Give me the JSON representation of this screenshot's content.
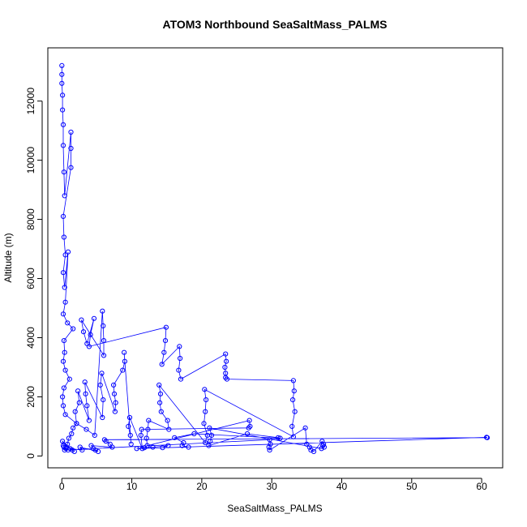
{
  "chart_data": {
    "type": "scatter",
    "title": "ATOM3 Northbound SeaSaltMass_PALMS",
    "xlabel": "SeaSaltMass_PALMS",
    "ylabel": "Altitude (m)",
    "xlim": [
      -2,
      63
    ],
    "ylim": [
      -400,
      13800
    ],
    "xticks": [
      0,
      10,
      20,
      30,
      40,
      50,
      60
    ],
    "yticks": [
      0,
      2000,
      4000,
      6000,
      8000,
      10000,
      12000
    ],
    "marker": "open-circle",
    "connect_points": true,
    "grid": false,
    "legend": "none",
    "series_color": "#0000ff",
    "series": [
      {
        "x": [
          0.0,
          0.0,
          0.0,
          0.1,
          0.1,
          0.2,
          0.2,
          0.3,
          0.4,
          1.3,
          1.3,
          1.3,
          0.2,
          0.3,
          0.5,
          0.2,
          0.4,
          0.9,
          0.5,
          0.2,
          0.8,
          1.6,
          0.3,
          0.4,
          0.2,
          0.5,
          1.1,
          0.3,
          0.1,
          0.2,
          0.5,
          2.1,
          3.5,
          4.7,
          5.8,
          5.9,
          6.0,
          6.0,
          2.8,
          3.1,
          3.6,
          4.6,
          4.1,
          3.9,
          14.9,
          14.8,
          14.6,
          14.3,
          16.8,
          16.9,
          16.7,
          17.0,
          23.4,
          23.5,
          23.3,
          23.4,
          23.4,
          23.6,
          33.1,
          33.2,
          33.0,
          33.3,
          32.9,
          33.1,
          20.4,
          20.6,
          20.5,
          20.3,
          20.8,
          20.5,
          13.9,
          14.1,
          14.0,
          14.2,
          15.1,
          15.3,
          12.4,
          12.3,
          12.1,
          12.2,
          26.8,
          26.9,
          26.7,
          11.4,
          11.3,
          11.5,
          9.7,
          9.5,
          9.8,
          9.9,
          8.9,
          9.0,
          8.7,
          7.4,
          7.5,
          7.7,
          7.6,
          5.7,
          5.5,
          5.9,
          5.8,
          3.3,
          3.4,
          3.6,
          3.9,
          2.3,
          2.5,
          1.9,
          2.1,
          1.6,
          1.4,
          1.0,
          0.8,
          0.6,
          0.4,
          29.7,
          29.8,
          29.6,
          29.7,
          34.8,
          35.0,
          35.4,
          35.6,
          36.0,
          37.2,
          37.4,
          37.3,
          37.5,
          37.1,
          21.1,
          21.4,
          21.2,
          21.0,
          26.5,
          30.9,
          31.2,
          18.9,
          16.1,
          17.4,
          17.2,
          18.1,
          14.4,
          15.2,
          13.0,
          11.8,
          10.7,
          60.7,
          60.8,
          6.1,
          6.3,
          6.9,
          7.2,
          4.2,
          4.5,
          4.8,
          5.2,
          2.6,
          2.9,
          1.2,
          1.5,
          1.8,
          0.1,
          0.2,
          0.3,
          0.6,
          0.9
        ],
        "y": [
          13200,
          12900,
          12600,
          12200,
          11700,
          11200,
          10500,
          9600,
          8800,
          10950,
          10400,
          9750,
          8100,
          7400,
          6800,
          6200,
          5700,
          6900,
          5200,
          4800,
          4500,
          4300,
          3900,
          3500,
          3200,
          2900,
          2600,
          2300,
          2000,
          1700,
          1400,
          1100,
          900,
          700,
          4900,
          4400,
          3900,
          3400,
          4600,
          4200,
          3800,
          4650,
          4100,
          3700,
          4350,
          3900,
          3500,
          3100,
          3700,
          3300,
          2900,
          2600,
          3450,
          3200,
          3000,
          2800,
          2650,
          2600,
          2550,
          2200,
          1900,
          1500,
          1000,
          650,
          2250,
          1900,
          1500,
          1100,
          700,
          450,
          2400,
          2100,
          1800,
          1500,
          1200,
          900,
          1200,
          900,
          600,
          350,
          1200,
          1000,
          950,
          900,
          700,
          250,
          1300,
          1000,
          700,
          400,
          3500,
          3200,
          2900,
          2400,
          2100,
          1800,
          1500,
          2800,
          2400,
          1900,
          1300,
          2500,
          2100,
          1700,
          1200,
          2200,
          1800,
          1500,
          1100,
          950,
          750,
          600,
          400,
          300,
          200,
          550,
          400,
          300,
          200,
          950,
          400,
          300,
          200,
          150,
          500,
          400,
          350,
          300,
          250,
          950,
          700,
          500,
          350,
          750,
          620,
          600,
          750,
          620,
          450,
          350,
          300,
          280,
          350,
          300,
          280,
          250,
          630,
          620,
          550,
          500,
          400,
          300,
          350,
          250,
          200,
          150,
          300,
          200,
          250,
          200,
          150,
          500,
          350,
          300,
          250,
          200
        ]
      }
    ]
  }
}
